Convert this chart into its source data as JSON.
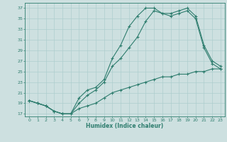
{
  "title": "",
  "xlabel": "Humidex (Indice chaleur)",
  "ylabel": "",
  "bg_color": "#cde0e0",
  "grid_color": "#aecece",
  "line_color": "#2e7d6e",
  "xlim": [
    -0.5,
    23.5
  ],
  "ylim": [
    16.5,
    38.0
  ],
  "xticks": [
    0,
    1,
    2,
    3,
    4,
    5,
    6,
    7,
    8,
    9,
    10,
    11,
    12,
    13,
    14,
    15,
    16,
    17,
    18,
    19,
    20,
    21,
    22,
    23
  ],
  "yticks": [
    17,
    19,
    21,
    23,
    25,
    27,
    29,
    31,
    33,
    35,
    37
  ],
  "line1_x": [
    0,
    1,
    2,
    3,
    4,
    5,
    6,
    7,
    8,
    9,
    10,
    11,
    12,
    13,
    14,
    15,
    16,
    17,
    18,
    19,
    20,
    21,
    22,
    23
  ],
  "line1_y": [
    19.5,
    19.0,
    18.5,
    17.5,
    17.0,
    17.0,
    20.0,
    21.5,
    22.0,
    23.5,
    27.5,
    30.0,
    33.5,
    35.5,
    37.0,
    37.0,
    36.0,
    36.0,
    36.5,
    37.0,
    35.5,
    30.0,
    27.0,
    26.0
  ],
  "line2_x": [
    0,
    1,
    2,
    3,
    4,
    5,
    6,
    7,
    8,
    9,
    10,
    11,
    12,
    13,
    14,
    15,
    16,
    17,
    18,
    19,
    20,
    21,
    22,
    23
  ],
  "line2_y": [
    19.5,
    19.0,
    18.5,
    17.5,
    17.0,
    17.0,
    19.0,
    20.5,
    21.5,
    23.0,
    26.0,
    27.5,
    29.5,
    31.5,
    34.5,
    36.5,
    36.0,
    35.5,
    36.0,
    36.5,
    35.0,
    29.5,
    26.5,
    25.5
  ],
  "line3_x": [
    0,
    1,
    2,
    3,
    4,
    5,
    6,
    7,
    8,
    9,
    10,
    11,
    12,
    13,
    14,
    15,
    16,
    17,
    18,
    19,
    20,
    21,
    22,
    23
  ],
  "line3_y": [
    19.5,
    19.0,
    18.5,
    17.5,
    17.0,
    17.0,
    18.0,
    18.5,
    19.0,
    20.0,
    21.0,
    21.5,
    22.0,
    22.5,
    23.0,
    23.5,
    24.0,
    24.0,
    24.5,
    24.5,
    25.0,
    25.0,
    25.5,
    25.5
  ]
}
